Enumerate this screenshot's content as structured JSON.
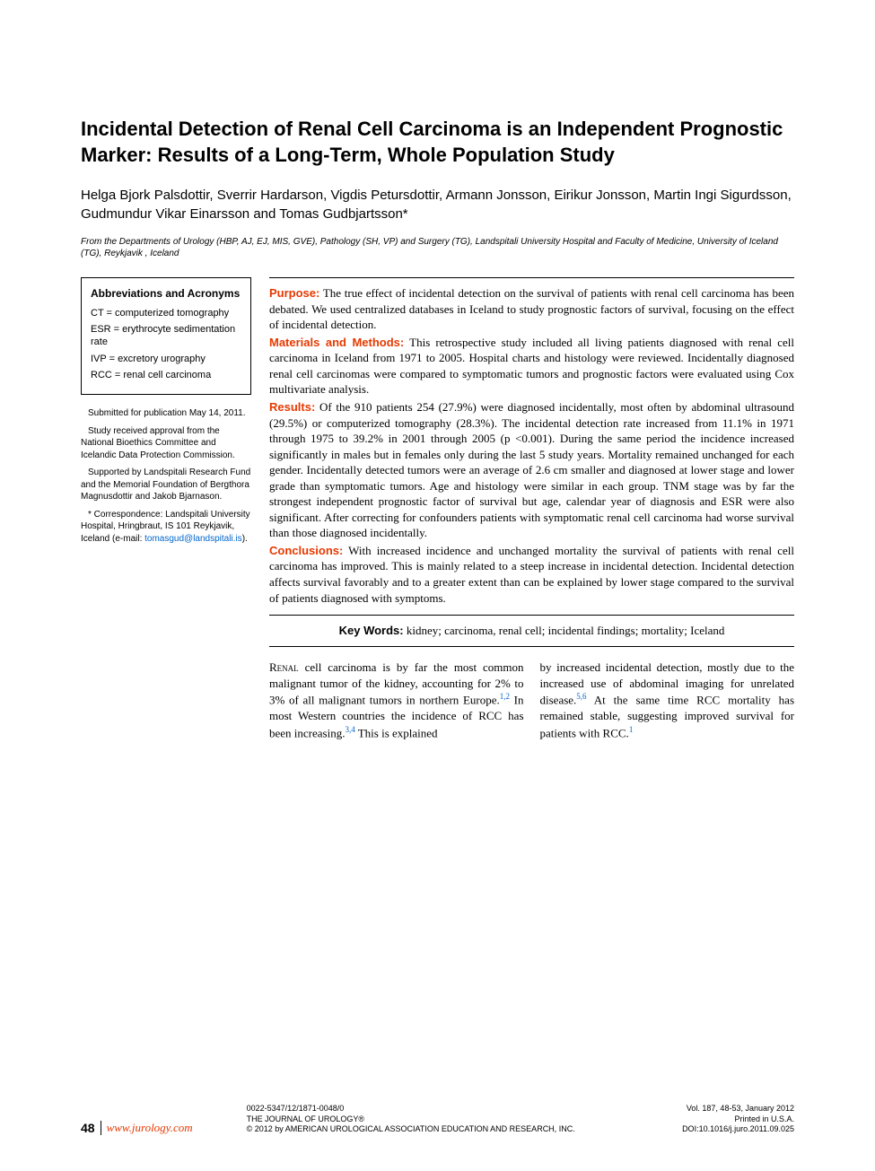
{
  "title": "Incidental Detection of Renal Cell Carcinoma is an Independent Prognostic Marker: Results of a Long-Term, Whole Population Study",
  "authors": "Helga Bjork Palsdottir, Sverrir Hardarson, Vigdis Petursdottir, Armann Jonsson, Eirikur Jonsson, Martin Ingi Sigurdsson, Gudmundur Vikar Einarsson and Tomas Gudbjartsson*",
  "affiliation": "From the Departments of Urology (HBP, AJ, EJ, MIS, GVE), Pathology (SH, VP) and Surgery (TG), Landspitali University Hospital and Faculty of Medicine, University of Iceland (TG), Reykjavik , Iceland",
  "abbr": {
    "title": "Abbreviations and Acronyms",
    "items": [
      "CT = computerized tomography",
      "ESR = erythrocyte sedimentation rate",
      "IVP = excretory urography",
      "RCC = renal cell carcinoma"
    ]
  },
  "notes": {
    "n1": "Submitted for publication May 14, 2011.",
    "n2": "Study received approval from the National Bioethics Committee and Icelandic Data Protection Commission.",
    "n3": "Supported by Landspitali Research Fund and the Memorial Foundation of Bergthora Magnusdottir and Jakob Bjarnason.",
    "n4_pre": "* Correspondence: Landspitali University Hospital, Hringbraut, IS 101 Reykjavik, Iceland (e-mail: ",
    "n4_email": "tomasgud@landspitali.is",
    "n4_post": ")."
  },
  "abstract": {
    "purpose_label": "Purpose:",
    "purpose": " The true effect of incidental detection on the survival of patients with renal cell carcinoma has been debated. We used centralized databases in Iceland to study prognostic factors of survival, focusing on the effect of incidental detection.",
    "methods_label": "Materials and Methods:",
    "methods": " This retrospective study included all living patients diagnosed with renal cell carcinoma in Iceland from 1971 to 2005. Hospital charts and histology were reviewed. Incidentally diagnosed renal cell carcinomas were compared to symptomatic tumors and prognostic factors were evaluated using Cox multivariate analysis.",
    "results_label": "Results:",
    "results": " Of the 910 patients 254 (27.9%) were diagnosed incidentally, most often by abdominal ultrasound (29.5%) or computerized tomography (28.3%). The incidental detection rate increased from 11.1% in 1971 through 1975 to 39.2% in 2001 through 2005 (p <0.001). During the same period the incidence increased significantly in males but in females only during the last 5 study years. Mortality remained unchanged for each gender. Incidentally detected tumors were an average of 2.6 cm smaller and diagnosed at lower stage and lower grade than symptomatic tumors. Age and histology were similar in each group. TNM stage was by far the strongest independent prognostic factor of survival but age, calendar year of diagnosis and ESR were also significant. After correcting for confounders patients with symptomatic renal cell carcinoma had worse survival than those diagnosed incidentally.",
    "conclusions_label": "Conclusions:",
    "conclusions": " With increased incidence and unchanged mortality the survival of patients with renal cell carcinoma has improved. This is mainly related to a steep increase in incidental detection. Incidental detection affects survival favorably and to a greater extent than can be explained by lower stage compared to the survival of patients diagnosed with symptoms."
  },
  "keywords": {
    "label": "Key Words:",
    "text": " kidney; carcinoma, renal cell; incidental findings; mortality; Iceland"
  },
  "body": {
    "col1_lead": "Renal",
    "col1_a": " cell carcinoma is by far the most common malignant tumor of the kidney, accounting for 2% to 3% of all malignant tumors in northern Europe.",
    "col1_ref1": "1,2",
    "col1_b": " In most Western countries the incidence of RCC has been increasing.",
    "col1_ref2": "3,4",
    "col1_c": " This is explained",
    "col2_a": "by increased incidental detection, mostly due to the increased use of abdominal imaging for unrelated disease.",
    "col2_ref1": "5,6",
    "col2_b": " At the same time RCC mortality has remained stable, suggesting improved survival for patients with RCC.",
    "col2_ref2": "1"
  },
  "footer": {
    "page": "48",
    "url": "www.jurology.com",
    "issn": "0022-5347/12/1871-0048/0",
    "journal": "THE JOURNAL OF UROLOGY®",
    "copyright": "© 2012 by AMERICAN UROLOGICAL ASSOCIATION EDUCATION AND RESEARCH, INC.",
    "vol": "Vol. 187, 48-53, January 2012",
    "printed": "Printed in U.S.A.",
    "doi": "DOI:10.1016/j.juro.2011.09.025"
  },
  "colors": {
    "accent": "#e63900",
    "link": "#0066cc",
    "text": "#000000",
    "bg": "#ffffff"
  }
}
